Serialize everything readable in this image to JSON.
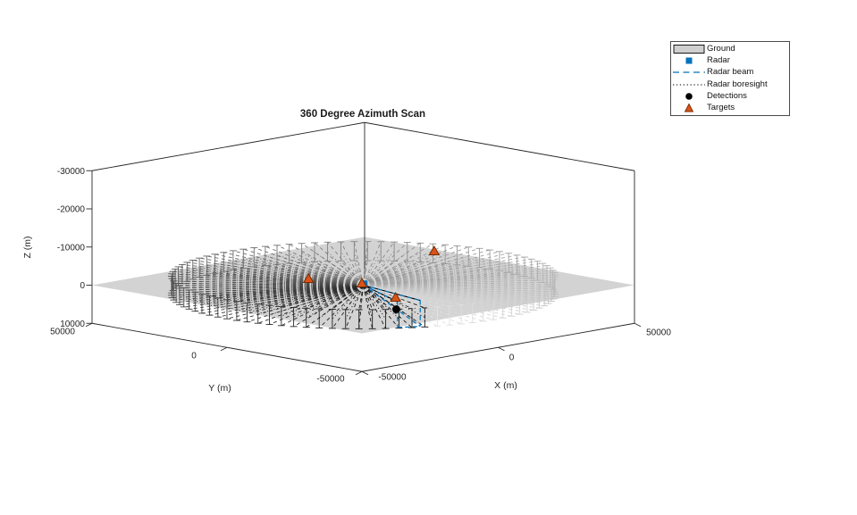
{
  "title": "360 Degree Azimuth Scan",
  "axes": {
    "x": {
      "label": "X (m)",
      "ticks": [
        "-50000",
        "0",
        "50000"
      ],
      "tick_values": [
        -50000,
        0,
        50000
      ]
    },
    "y": {
      "label": "Y (m)",
      "ticks": [
        "50000",
        "0",
        "-50000"
      ],
      "tick_values": [
        50000,
        0,
        -50000
      ]
    },
    "z": {
      "label": "Z (m)",
      "ticks": [
        "-30000",
        "-20000",
        "-10000",
        "0",
        "10000"
      ],
      "tick_values": [
        -30000,
        -20000,
        -10000,
        0,
        10000
      ],
      "reversed": true
    }
  },
  "legend": {
    "items": [
      {
        "label": "Ground",
        "type": "patch",
        "fill": "#cfcfcf",
        "edge": "#000000"
      },
      {
        "label": "Radar",
        "type": "square",
        "color": "#0072BD"
      },
      {
        "label": "Radar beam",
        "type": "dashed-line",
        "color": "#0072BD"
      },
      {
        "label": "Radar boresight",
        "type": "dotted-line",
        "color": "#000000"
      },
      {
        "label": "Detections",
        "type": "circle",
        "color": "#000000"
      },
      {
        "label": "Targets",
        "type": "triangle",
        "color": "#D95319",
        "edge": "#7a2a00"
      }
    ]
  },
  "chart_data": {
    "type": "scatter",
    "projection": "3d",
    "title": "360 Degree Azimuth Scan",
    "xlabel": "X (m)",
    "ylabel": "Y (m)",
    "zlabel": "Z (m)",
    "xlim": [
      -50000,
      50000
    ],
    "ylim": [
      -50000,
      50000
    ],
    "zlim": [
      -30000,
      10000
    ],
    "zdir": "reverse",
    "grid": false,
    "legend_position": "top-right-outside",
    "ground": {
      "z": 0,
      "half_extent_m": 50000,
      "color": "#d3d3d3"
    },
    "scan": {
      "beam_count": 90,
      "max_range_m": 50000,
      "history_half_height_m": 2500,
      "current_azimuth_deg": 241,
      "beam_azimuth_width_deg": 8,
      "beam_range_m": 44000,
      "beam_half_height_m": 3400,
      "beam_color": "#0072BD",
      "boresight_color": "#000000",
      "fade_gray_min": 0.06,
      "fade_gray_max": 0.9
    },
    "radar": {
      "marker": "square",
      "color": "#0072BD",
      "position_m": [
        0,
        0,
        0
      ]
    },
    "targets": {
      "marker": "triangle",
      "fill": "#D95319",
      "edge": "#7a2a00",
      "points_m": [
        [
          -3650,
          16600,
          0
        ],
        [
          0,
          500,
          -400
        ],
        [
          -6950,
          -19000,
          0
        ],
        [
          8700,
          -17500,
          -10000
        ]
      ]
    },
    "detections": {
      "marker": "circle",
      "color": "#000000",
      "points_m": [
        [
          -18800,
          -31200,
          0
        ]
      ]
    }
  }
}
